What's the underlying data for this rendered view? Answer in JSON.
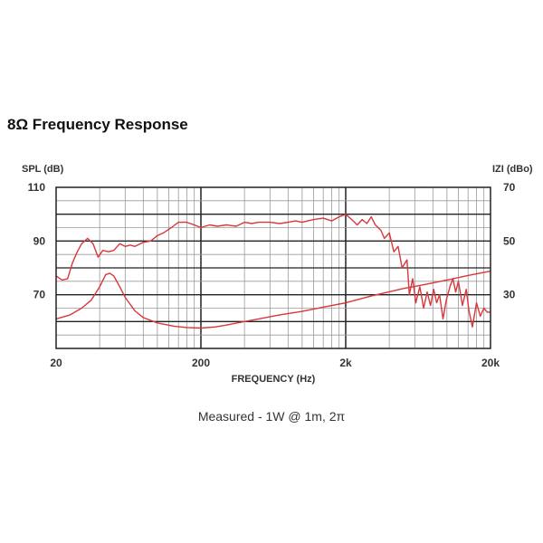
{
  "title": "8Ω Frequency Response",
  "caption": "Measured - 1W @ 1m, 2π",
  "chart_data": {
    "type": "line",
    "xlabel": "FREQUENCY (Hz)",
    "ylabel_left": "SPL (dB)",
    "ylabel_right": "IZI (dBo)",
    "xscale": "log",
    "xlim": [
      20,
      20000
    ],
    "ylim_left": [
      50,
      110
    ],
    "ylim_right": [
      10,
      70
    ],
    "x_ticks": [
      {
        "value": 20,
        "label": "20"
      },
      {
        "value": 200,
        "label": "200"
      },
      {
        "value": 2000,
        "label": "2k"
      },
      {
        "value": 20000,
        "label": "20k"
      }
    ],
    "y_ticks_left": [
      110,
      90,
      70
    ],
    "y_ticks_right": [
      70,
      50,
      30
    ],
    "grid": true,
    "series": [
      {
        "name": "",
        "axis": "left",
        "color": "#d9373a",
        "points": [
          [
            20,
            77
          ],
          [
            22,
            75.5
          ],
          [
            24,
            76
          ],
          [
            26,
            82
          ],
          [
            28,
            86
          ],
          [
            30,
            89
          ],
          [
            33,
            91
          ],
          [
            36,
            89
          ],
          [
            39,
            84
          ],
          [
            42,
            86.5
          ],
          [
            46,
            86
          ],
          [
            50,
            86.5
          ],
          [
            55,
            89
          ],
          [
            60,
            88
          ],
          [
            65,
            88.5
          ],
          [
            70,
            88
          ],
          [
            80,
            89.5
          ],
          [
            90,
            90
          ],
          [
            100,
            92
          ],
          [
            110,
            93
          ],
          [
            125,
            95
          ],
          [
            140,
            97
          ],
          [
            160,
            97
          ],
          [
            180,
            96
          ],
          [
            200,
            95
          ],
          [
            230,
            96
          ],
          [
            260,
            95.5
          ],
          [
            300,
            96
          ],
          [
            350,
            95.5
          ],
          [
            400,
            97
          ],
          [
            450,
            96.5
          ],
          [
            500,
            97
          ],
          [
            600,
            97
          ],
          [
            700,
            96.5
          ],
          [
            800,
            97
          ],
          [
            900,
            97.5
          ],
          [
            1000,
            97
          ],
          [
            1200,
            98
          ],
          [
            1400,
            98.5
          ],
          [
            1600,
            97.5
          ],
          [
            1800,
            99
          ],
          [
            2000,
            100
          ],
          [
            2200,
            98
          ],
          [
            2400,
            96
          ],
          [
            2600,
            98
          ],
          [
            2800,
            96.5
          ],
          [
            3000,
            99
          ],
          [
            3200,
            96
          ],
          [
            3500,
            94
          ],
          [
            3700,
            91
          ],
          [
            4000,
            93
          ],
          [
            4300,
            86
          ],
          [
            4600,
            88
          ],
          [
            4900,
            80
          ],
          [
            5300,
            83
          ],
          [
            5500,
            70
          ],
          [
            5800,
            76
          ],
          [
            6100,
            67
          ],
          [
            6500,
            73
          ],
          [
            6900,
            65
          ],
          [
            7300,
            71
          ],
          [
            7700,
            66
          ],
          [
            8100,
            72
          ],
          [
            8500,
            67
          ],
          [
            8900,
            70
          ],
          [
            9400,
            61
          ],
          [
            9900,
            68
          ],
          [
            10500,
            73
          ],
          [
            11000,
            76
          ],
          [
            11500,
            71
          ],
          [
            12000,
            75
          ],
          [
            12800,
            66
          ],
          [
            13600,
            72
          ],
          [
            14200,
            64
          ],
          [
            15000,
            58
          ],
          [
            16000,
            67
          ],
          [
            17000,
            62
          ],
          [
            18000,
            65
          ],
          [
            19000,
            63.5
          ],
          [
            20000,
            63.5
          ]
        ]
      },
      {
        "name": "",
        "axis": "right",
        "color": "#d9373a",
        "points": [
          [
            20,
            21
          ],
          [
            25,
            22.5
          ],
          [
            30,
            25
          ],
          [
            35,
            28
          ],
          [
            40,
            33
          ],
          [
            44,
            37.5
          ],
          [
            47,
            38
          ],
          [
            50,
            37
          ],
          [
            55,
            33
          ],
          [
            60,
            29
          ],
          [
            70,
            24
          ],
          [
            80,
            21.5
          ],
          [
            100,
            19.5
          ],
          [
            130,
            18.3
          ],
          [
            160,
            17.8
          ],
          [
            200,
            17.6
          ],
          [
            250,
            18
          ],
          [
            300,
            18.7
          ],
          [
            400,
            20
          ],
          [
            500,
            21
          ],
          [
            700,
            22.5
          ],
          [
            1000,
            23.8
          ],
          [
            1500,
            25.7
          ],
          [
            2000,
            27
          ],
          [
            3000,
            29.5
          ],
          [
            5000,
            32.3
          ],
          [
            7000,
            33.8
          ],
          [
            10000,
            35.5
          ],
          [
            15000,
            37.5
          ],
          [
            20000,
            38.8
          ]
        ]
      }
    ]
  }
}
